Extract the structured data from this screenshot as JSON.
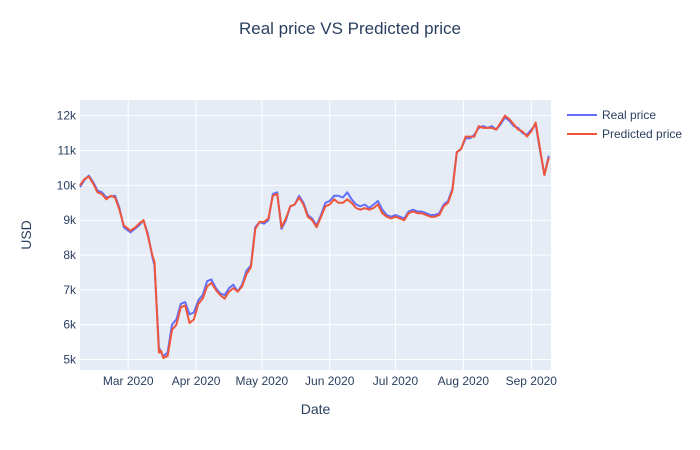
{
  "chart_data": {
    "type": "line",
    "title": "Real price VS Predicted price",
    "xlabel": "Date",
    "ylabel": "USD",
    "x_ticks": [
      "2020-03-01",
      "2020-04-01",
      "2020-05-01",
      "2020-06-01",
      "2020-07-01",
      "2020-08-01",
      "2020-09-01"
    ],
    "x_tick_labels": [
      "Mar 2020",
      "Apr 2020",
      "May 2020",
      "Jun 2020",
      "Jul 2020",
      "Aug 2020",
      "Sep 2020"
    ],
    "y_ticks": [
      5000,
      6000,
      7000,
      8000,
      9000,
      10000,
      11000,
      12000
    ],
    "y_tick_labels": [
      "5k",
      "6k",
      "7k",
      "8k",
      "9k",
      "10k",
      "11k",
      "12k"
    ],
    "xlim": [
      "2020-02-08",
      "2020-09-10"
    ],
    "ylim": [
      4700,
      12450
    ],
    "grid": true,
    "legend_position": "right",
    "colors": {
      "plot_bg": "#e5ecf6",
      "grid": "#ffffff",
      "text": "#2a3f5f"
    },
    "series": [
      {
        "name": "Real price",
        "color": "#636efa",
        "points": [
          [
            "2020-02-08",
            9950
          ],
          [
            "2020-02-10",
            10150
          ],
          [
            "2020-02-12",
            10280
          ],
          [
            "2020-02-14",
            10100
          ],
          [
            "2020-02-16",
            9850
          ],
          [
            "2020-02-18",
            9800
          ],
          [
            "2020-02-20",
            9650
          ],
          [
            "2020-02-22",
            9680
          ],
          [
            "2020-02-24",
            9700
          ],
          [
            "2020-02-26",
            9350
          ],
          [
            "2020-02-28",
            8800
          ],
          [
            "2020-03-02",
            8650
          ],
          [
            "2020-03-04",
            8750
          ],
          [
            "2020-03-06",
            8850
          ],
          [
            "2020-03-08",
            9000
          ],
          [
            "2020-03-10",
            8600
          ],
          [
            "2020-03-12",
            7950
          ],
          [
            "2020-03-13",
            7700
          ],
          [
            "2020-03-15",
            5350
          ],
          [
            "2020-03-16",
            5200
          ],
          [
            "2020-03-17",
            5100
          ],
          [
            "2020-03-19",
            5200
          ],
          [
            "2020-03-21",
            6000
          ],
          [
            "2020-03-23",
            6150
          ],
          [
            "2020-03-25",
            6600
          ],
          [
            "2020-03-27",
            6650
          ],
          [
            "2020-03-29",
            6300
          ],
          [
            "2020-03-31",
            6350
          ],
          [
            "2020-04-02",
            6700
          ],
          [
            "2020-04-04",
            6850
          ],
          [
            "2020-04-06",
            7250
          ],
          [
            "2020-04-08",
            7300
          ],
          [
            "2020-04-10",
            7050
          ],
          [
            "2020-04-12",
            6900
          ],
          [
            "2020-04-14",
            6850
          ],
          [
            "2020-04-16",
            7050
          ],
          [
            "2020-04-18",
            7150
          ],
          [
            "2020-04-20",
            6950
          ],
          [
            "2020-04-22",
            7150
          ],
          [
            "2020-04-24",
            7550
          ],
          [
            "2020-04-26",
            7700
          ],
          [
            "2020-04-28",
            8800
          ],
          [
            "2020-04-30",
            8950
          ],
          [
            "2020-05-02",
            8900
          ],
          [
            "2020-05-04",
            9000
          ],
          [
            "2020-05-06",
            9750
          ],
          [
            "2020-05-08",
            9800
          ],
          [
            "2020-05-10",
            8750
          ],
          [
            "2020-05-12",
            9000
          ],
          [
            "2020-05-14",
            9400
          ],
          [
            "2020-05-16",
            9450
          ],
          [
            "2020-05-18",
            9700
          ],
          [
            "2020-05-20",
            9500
          ],
          [
            "2020-05-22",
            9150
          ],
          [
            "2020-05-24",
            9050
          ],
          [
            "2020-05-26",
            8850
          ],
          [
            "2020-05-28",
            9150
          ],
          [
            "2020-05-30",
            9500
          ],
          [
            "2020-06-01",
            9550
          ],
          [
            "2020-06-03",
            9700
          ],
          [
            "2020-06-05",
            9700
          ],
          [
            "2020-06-07",
            9650
          ],
          [
            "2020-06-09",
            9800
          ],
          [
            "2020-06-11",
            9600
          ],
          [
            "2020-06-13",
            9450
          ],
          [
            "2020-06-15",
            9400
          ],
          [
            "2020-06-17",
            9450
          ],
          [
            "2020-06-19",
            9350
          ],
          [
            "2020-06-21",
            9450
          ],
          [
            "2020-06-23",
            9550
          ],
          [
            "2020-06-25",
            9300
          ],
          [
            "2020-06-27",
            9150
          ],
          [
            "2020-06-29",
            9100
          ],
          [
            "2020-07-01",
            9150
          ],
          [
            "2020-07-03",
            9100
          ],
          [
            "2020-07-05",
            9050
          ],
          [
            "2020-07-07",
            9250
          ],
          [
            "2020-07-09",
            9300
          ],
          [
            "2020-07-11",
            9250
          ],
          [
            "2020-07-13",
            9250
          ],
          [
            "2020-07-15",
            9200
          ],
          [
            "2020-07-17",
            9150
          ],
          [
            "2020-07-19",
            9150
          ],
          [
            "2020-07-21",
            9200
          ],
          [
            "2020-07-23",
            9450
          ],
          [
            "2020-07-25",
            9550
          ],
          [
            "2020-07-27",
            9900
          ],
          [
            "2020-07-29",
            10950
          ],
          [
            "2020-07-31",
            11050
          ],
          [
            "2020-08-02",
            11350
          ],
          [
            "2020-08-04",
            11350
          ],
          [
            "2020-08-06",
            11450
          ],
          [
            "2020-08-08",
            11650
          ],
          [
            "2020-08-10",
            11700
          ],
          [
            "2020-08-12",
            11650
          ],
          [
            "2020-08-14",
            11700
          ],
          [
            "2020-08-16",
            11600
          ],
          [
            "2020-08-18",
            11750
          ],
          [
            "2020-08-20",
            11950
          ],
          [
            "2020-08-22",
            11850
          ],
          [
            "2020-08-24",
            11700
          ],
          [
            "2020-08-26",
            11650
          ],
          [
            "2020-08-28",
            11500
          ],
          [
            "2020-08-30",
            11450
          ],
          [
            "2020-09-01",
            11600
          ],
          [
            "2020-09-03",
            11750
          ],
          [
            "2020-09-05",
            11000
          ],
          [
            "2020-09-07",
            10300
          ],
          [
            "2020-09-09",
            10850
          ]
        ]
      },
      {
        "name": "Predicted price",
        "color": "#ef553b",
        "points": [
          [
            "2020-02-08",
            10000
          ],
          [
            "2020-02-10",
            10180
          ],
          [
            "2020-02-12",
            10250
          ],
          [
            "2020-02-14",
            10050
          ],
          [
            "2020-02-16",
            9800
          ],
          [
            "2020-02-18",
            9750
          ],
          [
            "2020-02-20",
            9600
          ],
          [
            "2020-02-22",
            9700
          ],
          [
            "2020-02-24",
            9650
          ],
          [
            "2020-02-26",
            9300
          ],
          [
            "2020-02-28",
            8850
          ],
          [
            "2020-03-02",
            8700
          ],
          [
            "2020-03-04",
            8780
          ],
          [
            "2020-03-06",
            8900
          ],
          [
            "2020-03-08",
            9000
          ],
          [
            "2020-03-10",
            8550
          ],
          [
            "2020-03-12",
            8000
          ],
          [
            "2020-03-13",
            7800
          ],
          [
            "2020-03-15",
            5200
          ],
          [
            "2020-03-16",
            5250
          ],
          [
            "2020-03-17",
            5050
          ],
          [
            "2020-03-19",
            5100
          ],
          [
            "2020-03-21",
            5850
          ],
          [
            "2020-03-23",
            6000
          ],
          [
            "2020-03-25",
            6500
          ],
          [
            "2020-03-27",
            6550
          ],
          [
            "2020-03-29",
            6050
          ],
          [
            "2020-03-31",
            6150
          ],
          [
            "2020-04-02",
            6600
          ],
          [
            "2020-04-04",
            6750
          ],
          [
            "2020-04-06",
            7100
          ],
          [
            "2020-04-08",
            7200
          ],
          [
            "2020-04-10",
            7000
          ],
          [
            "2020-04-12",
            6850
          ],
          [
            "2020-04-14",
            6750
          ],
          [
            "2020-04-16",
            6950
          ],
          [
            "2020-04-18",
            7050
          ],
          [
            "2020-04-20",
            6950
          ],
          [
            "2020-04-22",
            7100
          ],
          [
            "2020-04-24",
            7450
          ],
          [
            "2020-04-26",
            7650
          ],
          [
            "2020-04-28",
            8750
          ],
          [
            "2020-04-30",
            8950
          ],
          [
            "2020-05-02",
            8950
          ],
          [
            "2020-05-04",
            9050
          ],
          [
            "2020-05-06",
            9700
          ],
          [
            "2020-05-08",
            9750
          ],
          [
            "2020-05-10",
            8800
          ],
          [
            "2020-05-12",
            9050
          ],
          [
            "2020-05-14",
            9400
          ],
          [
            "2020-05-16",
            9450
          ],
          [
            "2020-05-18",
            9650
          ],
          [
            "2020-05-20",
            9450
          ],
          [
            "2020-05-22",
            9100
          ],
          [
            "2020-05-24",
            9000
          ],
          [
            "2020-05-26",
            8800
          ],
          [
            "2020-05-28",
            9100
          ],
          [
            "2020-05-30",
            9400
          ],
          [
            "2020-06-01",
            9450
          ],
          [
            "2020-06-03",
            9600
          ],
          [
            "2020-06-05",
            9500
          ],
          [
            "2020-06-07",
            9500
          ],
          [
            "2020-06-09",
            9600
          ],
          [
            "2020-06-11",
            9500
          ],
          [
            "2020-06-13",
            9350
          ],
          [
            "2020-06-15",
            9300
          ],
          [
            "2020-06-17",
            9350
          ],
          [
            "2020-06-19",
            9300
          ],
          [
            "2020-06-21",
            9350
          ],
          [
            "2020-06-23",
            9450
          ],
          [
            "2020-06-25",
            9200
          ],
          [
            "2020-06-27",
            9100
          ],
          [
            "2020-06-29",
            9050
          ],
          [
            "2020-07-01",
            9100
          ],
          [
            "2020-07-03",
            9050
          ],
          [
            "2020-07-05",
            9000
          ],
          [
            "2020-07-07",
            9200
          ],
          [
            "2020-07-09",
            9250
          ],
          [
            "2020-07-11",
            9200
          ],
          [
            "2020-07-13",
            9200
          ],
          [
            "2020-07-15",
            9150
          ],
          [
            "2020-07-17",
            9100
          ],
          [
            "2020-07-19",
            9100
          ],
          [
            "2020-07-21",
            9150
          ],
          [
            "2020-07-23",
            9400
          ],
          [
            "2020-07-25",
            9500
          ],
          [
            "2020-07-27",
            9850
          ],
          [
            "2020-07-29",
            10950
          ],
          [
            "2020-07-31",
            11050
          ],
          [
            "2020-08-02",
            11400
          ],
          [
            "2020-08-04",
            11400
          ],
          [
            "2020-08-06",
            11400
          ],
          [
            "2020-08-08",
            11700
          ],
          [
            "2020-08-10",
            11650
          ],
          [
            "2020-08-12",
            11650
          ],
          [
            "2020-08-14",
            11650
          ],
          [
            "2020-08-16",
            11600
          ],
          [
            "2020-08-18",
            11800
          ],
          [
            "2020-08-20",
            12000
          ],
          [
            "2020-08-22",
            11900
          ],
          [
            "2020-08-24",
            11750
          ],
          [
            "2020-08-26",
            11600
          ],
          [
            "2020-08-28",
            11550
          ],
          [
            "2020-08-30",
            11400
          ],
          [
            "2020-09-01",
            11550
          ],
          [
            "2020-09-03",
            11800
          ],
          [
            "2020-09-05",
            11050
          ],
          [
            "2020-09-07",
            10300
          ],
          [
            "2020-09-09",
            10800
          ]
        ]
      }
    ]
  }
}
